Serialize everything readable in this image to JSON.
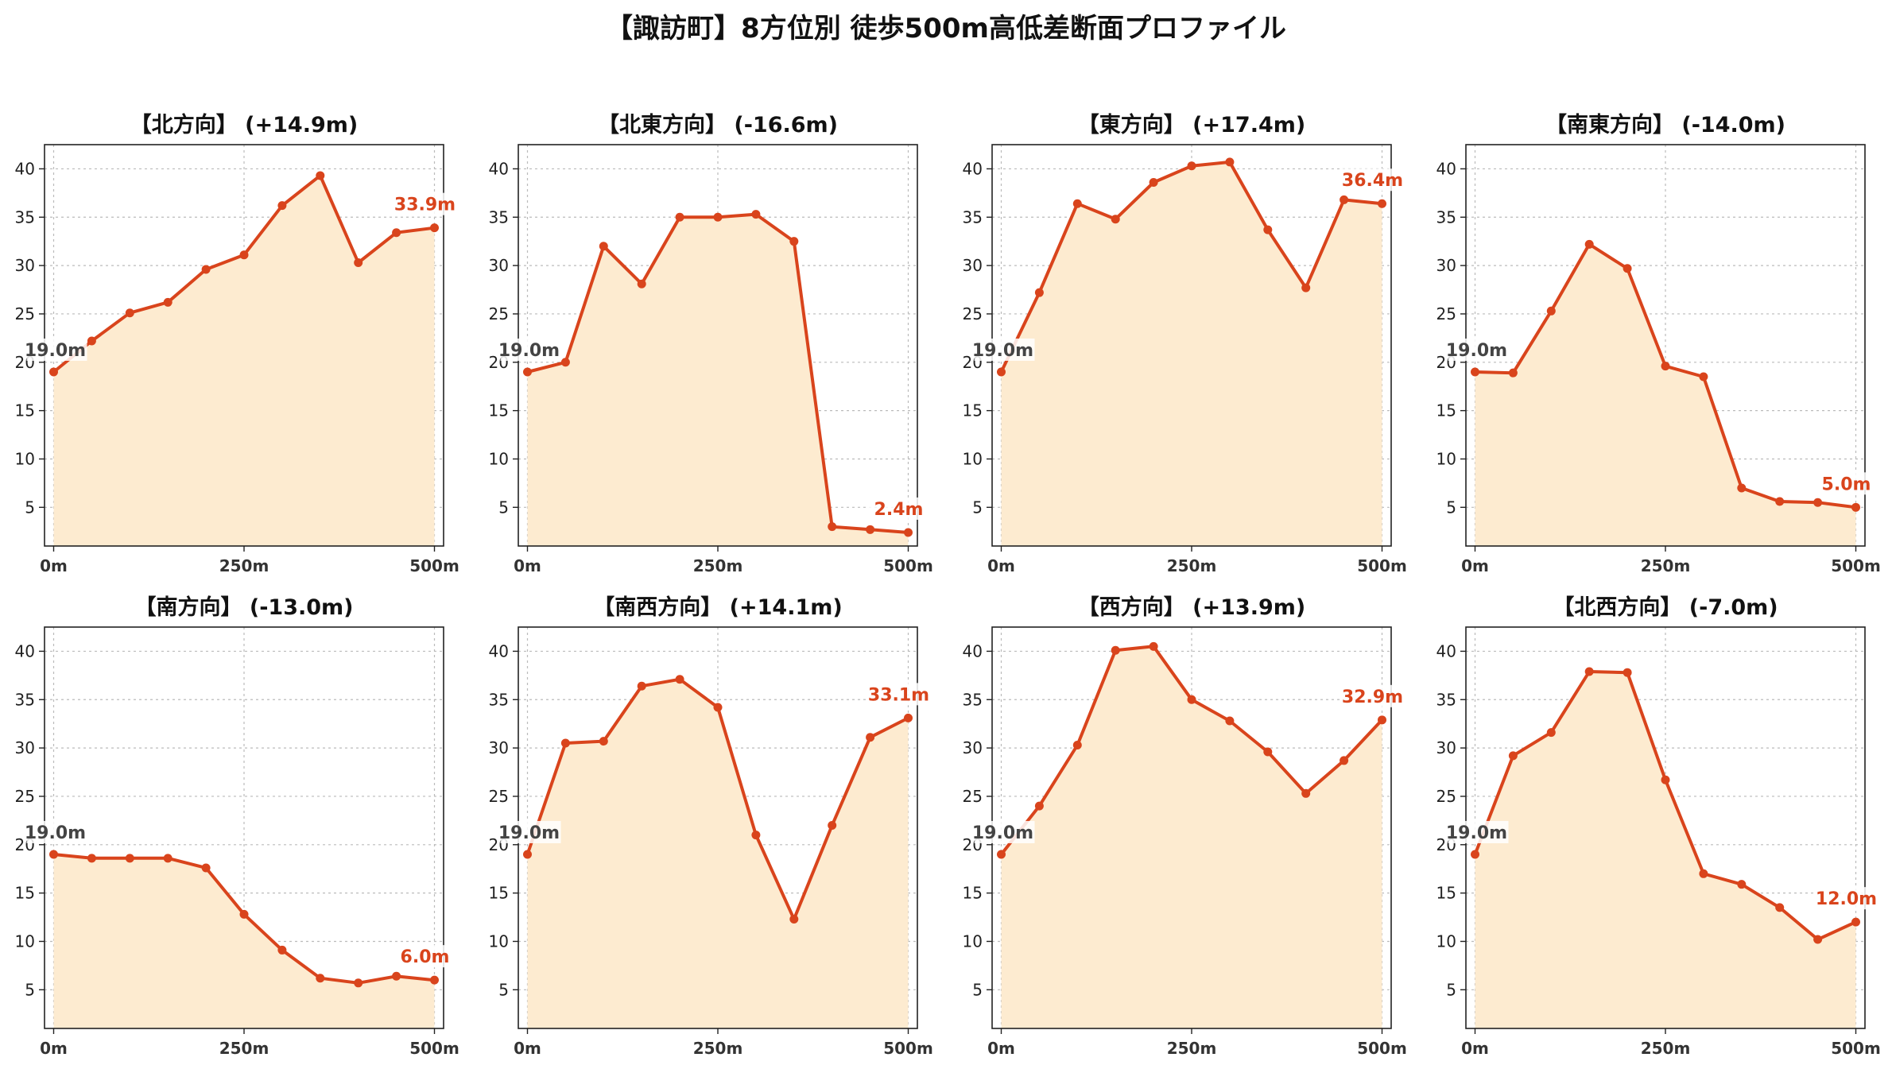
{
  "title": "【諏訪町】8方位別 徒歩500m高低差断面プロファイル",
  "colors": {
    "line": "#d9441c",
    "fill": "#fdebd0",
    "start_label": "#444444",
    "end_label": "#d9441c",
    "grid": "#bbbbbb"
  },
  "chart_data": [
    {
      "type": "area",
      "title": "【北方向】 (+14.9m)",
      "x": [
        0,
        50,
        100,
        150,
        200,
        250,
        300,
        350,
        400,
        450,
        500
      ],
      "values": [
        19.0,
        22.2,
        25.1,
        26.2,
        29.6,
        31.1,
        36.2,
        39.3,
        30.3,
        33.4,
        33.9
      ],
      "start_label": "19.0m",
      "end_label": "33.9m",
      "xticks": [
        "0m",
        "250m",
        "500m"
      ],
      "yticks": [
        "5",
        "10",
        "15",
        "20",
        "25",
        "30",
        "35",
        "40"
      ],
      "xlim": [
        -12,
        512
      ],
      "ylim": [
        1,
        42.5
      ],
      "grid": true
    },
    {
      "type": "area",
      "title": "【北東方向】 (-16.6m)",
      "x": [
        0,
        50,
        100,
        150,
        200,
        250,
        300,
        350,
        400,
        450,
        500
      ],
      "values": [
        19.0,
        20.0,
        32.0,
        28.1,
        35.0,
        35.0,
        35.3,
        32.5,
        3.0,
        2.7,
        2.4
      ],
      "start_label": "19.0m",
      "end_label": "2.4m",
      "xticks": [
        "0m",
        "250m",
        "500m"
      ],
      "yticks": [
        "5",
        "10",
        "15",
        "20",
        "25",
        "30",
        "35",
        "40"
      ],
      "xlim": [
        -12,
        512
      ],
      "ylim": [
        1,
        42.5
      ],
      "grid": true
    },
    {
      "type": "area",
      "title": "【東方向】 (+17.4m)",
      "x": [
        0,
        50,
        100,
        150,
        200,
        250,
        300,
        350,
        400,
        450,
        500
      ],
      "values": [
        19.0,
        27.2,
        36.4,
        34.8,
        38.6,
        40.3,
        40.7,
        33.7,
        27.7,
        36.8,
        36.4
      ],
      "start_label": "19.0m",
      "end_label": "36.4m",
      "xticks": [
        "0m",
        "250m",
        "500m"
      ],
      "yticks": [
        "5",
        "10",
        "15",
        "20",
        "25",
        "30",
        "35",
        "40"
      ],
      "xlim": [
        -12,
        512
      ],
      "ylim": [
        1,
        42.5
      ],
      "grid": true
    },
    {
      "type": "area",
      "title": "【南東方向】 (-14.0m)",
      "x": [
        0,
        50,
        100,
        150,
        200,
        250,
        300,
        350,
        400,
        450,
        500
      ],
      "values": [
        19.0,
        18.9,
        25.3,
        32.2,
        29.7,
        19.6,
        18.5,
        7.0,
        5.6,
        5.5,
        5.0
      ],
      "start_label": "19.0m",
      "end_label": "5.0m",
      "xticks": [
        "0m",
        "250m",
        "500m"
      ],
      "yticks": [
        "5",
        "10",
        "15",
        "20",
        "25",
        "30",
        "35",
        "40"
      ],
      "xlim": [
        -12,
        512
      ],
      "ylim": [
        1,
        42.5
      ],
      "grid": true
    },
    {
      "type": "area",
      "title": "【南方向】 (-13.0m)",
      "x": [
        0,
        50,
        100,
        150,
        200,
        250,
        300,
        350,
        400,
        450,
        500
      ],
      "values": [
        19.0,
        18.6,
        18.6,
        18.6,
        17.6,
        12.8,
        9.1,
        6.2,
        5.7,
        6.4,
        6.0
      ],
      "start_label": "19.0m",
      "end_label": "6.0m",
      "xticks": [
        "0m",
        "250m",
        "500m"
      ],
      "yticks": [
        "5",
        "10",
        "15",
        "20",
        "25",
        "30",
        "35",
        "40"
      ],
      "xlim": [
        -12,
        512
      ],
      "ylim": [
        1,
        42.5
      ],
      "grid": true
    },
    {
      "type": "area",
      "title": "【南西方向】 (+14.1m)",
      "x": [
        0,
        50,
        100,
        150,
        200,
        250,
        300,
        350,
        400,
        450,
        500
      ],
      "values": [
        19.0,
        30.5,
        30.7,
        36.4,
        37.1,
        34.2,
        21.0,
        12.3,
        22.0,
        31.1,
        33.1
      ],
      "start_label": "19.0m",
      "end_label": "33.1m",
      "xticks": [
        "0m",
        "250m",
        "500m"
      ],
      "yticks": [
        "5",
        "10",
        "15",
        "20",
        "25",
        "30",
        "35",
        "40"
      ],
      "xlim": [
        -12,
        512
      ],
      "ylim": [
        1,
        42.5
      ],
      "grid": true
    },
    {
      "type": "area",
      "title": "【西方向】 (+13.9m)",
      "x": [
        0,
        50,
        100,
        150,
        200,
        250,
        300,
        350,
        400,
        450,
        500
      ],
      "values": [
        19.0,
        24.0,
        30.3,
        40.1,
        40.5,
        35.0,
        32.8,
        29.6,
        25.3,
        28.7,
        32.9
      ],
      "start_label": "19.0m",
      "end_label": "32.9m",
      "xticks": [
        "0m",
        "250m",
        "500m"
      ],
      "yticks": [
        "5",
        "10",
        "15",
        "20",
        "25",
        "30",
        "35",
        "40"
      ],
      "xlim": [
        -12,
        512
      ],
      "ylim": [
        1,
        42.5
      ],
      "grid": true
    },
    {
      "type": "area",
      "title": "【北西方向】 (-7.0m)",
      "x": [
        0,
        50,
        100,
        150,
        200,
        250,
        300,
        350,
        400,
        450,
        500
      ],
      "values": [
        19.0,
        29.2,
        31.6,
        37.9,
        37.8,
        26.7,
        17.0,
        15.9,
        13.5,
        10.2,
        12.0
      ],
      "start_label": "19.0m",
      "end_label": "12.0m",
      "xticks": [
        "0m",
        "250m",
        "500m"
      ],
      "yticks": [
        "5",
        "10",
        "15",
        "20",
        "25",
        "30",
        "35",
        "40"
      ],
      "xlim": [
        -12,
        512
      ],
      "ylim": [
        1,
        42.5
      ],
      "grid": true
    }
  ]
}
